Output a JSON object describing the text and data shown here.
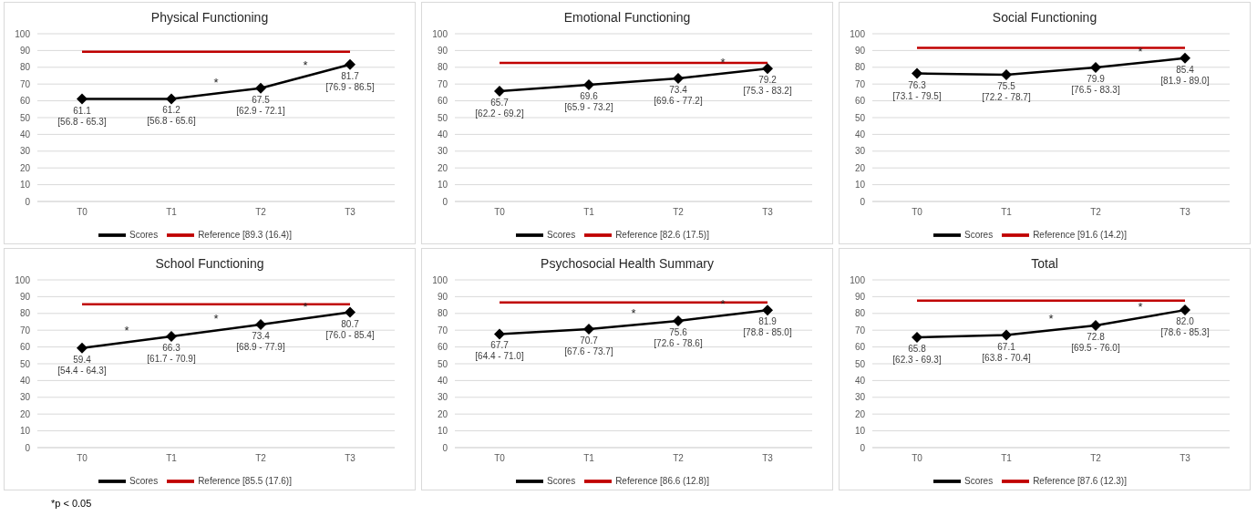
{
  "chart_data": [
    {
      "type": "line",
      "title": "Physical Functioning",
      "categories": [
        "T0",
        "T1",
        "T2",
        "T3"
      ],
      "ylim": [
        0,
        100
      ],
      "yticks": [
        0,
        10,
        20,
        30,
        40,
        50,
        60,
        70,
        80,
        90,
        100
      ],
      "grid": "y",
      "legend": "bottom",
      "series": [
        {
          "name": "Scores",
          "color": "#000000",
          "marker": "diamond",
          "values": [
            61.1,
            61.2,
            67.5,
            81.7
          ],
          "value_labels": [
            "61.1\n[56.8 - 65.3]",
            "61.2\n[56.8 - 65.6]",
            "67.5\n[62.9 - 72.1]",
            "81.7\n[76.9 - 86.5]"
          ]
        },
        {
          "name": "Reference [89.3 (16.4)]",
          "color": "#c00000",
          "marker": "none",
          "values": [
            89.3,
            89.3,
            89.3,
            89.3
          ]
        }
      ],
      "annotations": [
        "*",
        "*"
      ]
    },
    {
      "type": "line",
      "title": "Emotional Functioning",
      "categories": [
        "T0",
        "T1",
        "T2",
        "T3"
      ],
      "ylim": [
        0,
        100
      ],
      "yticks": [
        0,
        10,
        20,
        30,
        40,
        50,
        60,
        70,
        80,
        90,
        100
      ],
      "grid": "y",
      "legend": "bottom",
      "series": [
        {
          "name": "Scores",
          "color": "#000000",
          "marker": "diamond",
          "values": [
            65.7,
            69.6,
            73.4,
            79.2
          ],
          "value_labels": [
            "65.7\n[62.2 - 69.2]",
            "69.6\n[65.9 - 73.2]",
            "73.4\n[69.6 - 77.2]",
            "79.2\n[75.3 - 83.2]"
          ]
        },
        {
          "name": "Reference [82.6 (17.5)]",
          "color": "#c00000",
          "marker": "none",
          "values": [
            82.6,
            82.6,
            82.6,
            82.6
          ]
        }
      ],
      "annotations": [
        "*"
      ]
    },
    {
      "type": "line",
      "title": "Social Functioning",
      "categories": [
        "T0",
        "T1",
        "T2",
        "T3"
      ],
      "ylim": [
        0,
        100
      ],
      "yticks": [
        0,
        10,
        20,
        30,
        40,
        50,
        60,
        70,
        80,
        90,
        100
      ],
      "grid": "y",
      "legend": "bottom",
      "series": [
        {
          "name": "Scores",
          "color": "#000000",
          "marker": "diamond",
          "values": [
            76.3,
            75.5,
            79.9,
            85.4
          ],
          "value_labels": [
            "76.3\n[73.1 - 79.5]",
            "75.5\n[72.2 - 78.7]",
            "79.9\n[76.5 - 83.3]",
            "85.4\n[81.9 - 89.0]"
          ]
        },
        {
          "name": "Reference [91.6 (14.2)]",
          "color": "#c00000",
          "marker": "none",
          "values": [
            91.6,
            91.6,
            91.6,
            91.6
          ]
        }
      ],
      "annotations": [
        "*"
      ]
    },
    {
      "type": "line",
      "title": "School Functioning",
      "categories": [
        "T0",
        "T1",
        "T2",
        "T3"
      ],
      "ylim": [
        0,
        100
      ],
      "yticks": [
        0,
        10,
        20,
        30,
        40,
        50,
        60,
        70,
        80,
        90,
        100
      ],
      "grid": "y",
      "legend": "bottom",
      "series": [
        {
          "name": "Scores",
          "color": "#000000",
          "marker": "diamond",
          "values": [
            59.4,
            66.3,
            73.4,
            80.7
          ],
          "value_labels": [
            "59.4\n[54.4 - 64.3]",
            "66.3\n[61.7 - 70.9]",
            "73.4\n[68.9 - 77.9]",
            "80.7\n[76.0 - 85.4]"
          ]
        },
        {
          "name": "Reference [85.5 (17.6)]",
          "color": "#c00000",
          "marker": "none",
          "values": [
            85.5,
            85.5,
            85.5,
            85.5
          ]
        }
      ],
      "annotations": [
        "*",
        "*",
        "*"
      ]
    },
    {
      "type": "line",
      "title": "Psychosocial Health Summary",
      "categories": [
        "T0",
        "T1",
        "T2",
        "T3"
      ],
      "ylim": [
        0,
        100
      ],
      "yticks": [
        0,
        10,
        20,
        30,
        40,
        50,
        60,
        70,
        80,
        90,
        100
      ],
      "grid": "y",
      "legend": "bottom",
      "series": [
        {
          "name": "Scores",
          "color": "#000000",
          "marker": "diamond",
          "values": [
            67.7,
            70.7,
            75.6,
            81.9
          ],
          "value_labels": [
            "67.7\n[64.4 - 71.0]",
            "70.7\n[67.6 - 73.7]",
            "75.6\n[72.6 - 78.6]",
            "81.9\n[78.8 - 85.0]"
          ]
        },
        {
          "name": "Reference [86.6 (12.8)]",
          "color": "#c00000",
          "marker": "none",
          "values": [
            86.6,
            86.6,
            86.6,
            86.6
          ]
        }
      ],
      "annotations": [
        "*",
        "*"
      ]
    },
    {
      "type": "line",
      "title": "Total",
      "categories": [
        "T0",
        "T1",
        "T2",
        "T3"
      ],
      "ylim": [
        0,
        100
      ],
      "yticks": [
        0,
        10,
        20,
        30,
        40,
        50,
        60,
        70,
        80,
        90,
        100
      ],
      "grid": "y",
      "legend": "bottom",
      "series": [
        {
          "name": "Scores",
          "color": "#000000",
          "marker": "diamond",
          "values": [
            65.8,
            67.1,
            72.8,
            82.0
          ],
          "value_labels": [
            "65.8\n[62.3 - 69.3]",
            "67.1\n[63.8 - 70.4]",
            "72.8\n[69.5 - 76.0]",
            "82.0\n[78.6 - 85.3]"
          ]
        },
        {
          "name": "Reference [87.6 (12.3)]",
          "color": "#c00000",
          "marker": "none",
          "values": [
            87.6,
            87.6,
            87.6,
            87.6
          ]
        }
      ],
      "annotations": [
        "*",
        "*"
      ]
    },
    {
      "type": "other",
      "annotations": [
        "*p < 0.05"
      ]
    }
  ]
}
